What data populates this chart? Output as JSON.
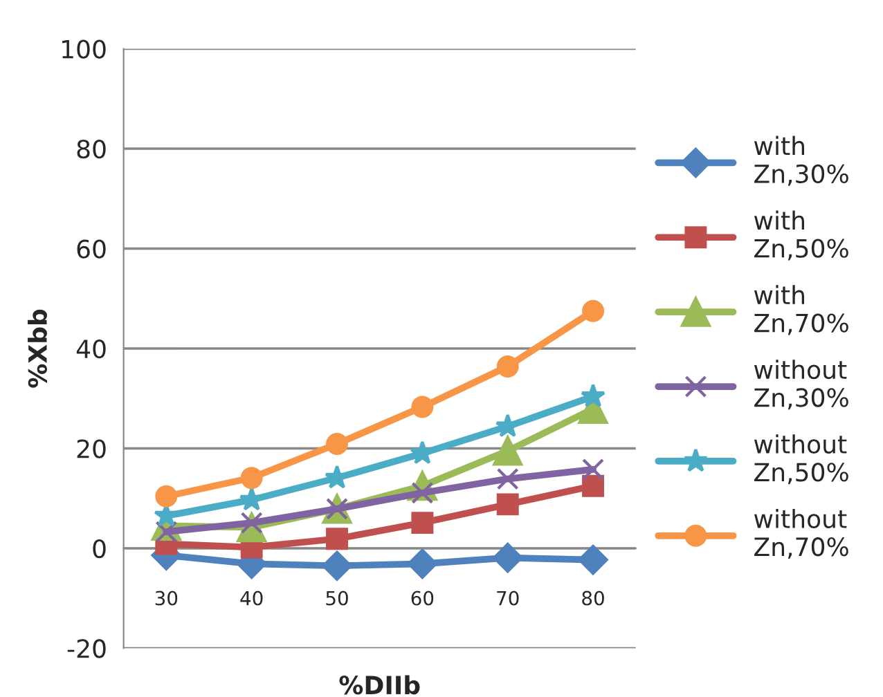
{
  "chart_data": {
    "type": "line",
    "xlabel": "%DIIb",
    "ylabel": "%Xbb",
    "categories": [
      "30",
      "40",
      "50",
      "60",
      "70",
      "80"
    ],
    "series": [
      {
        "name": "with Zn,30%",
        "color": "#4f81bd",
        "marker": "diamond",
        "values": [
          -1.4,
          -3.1,
          -3.5,
          -3.1,
          -1.9,
          -2.3
        ]
      },
      {
        "name": "with Zn,50%",
        "color": "#c0504d",
        "marker": "square",
        "values": [
          0.9,
          0.2,
          1.9,
          5.1,
          8.8,
          12.5
        ]
      },
      {
        "name": "with Zn,70%",
        "color": "#9bbb59",
        "marker": "triangle",
        "values": [
          4.5,
          4.2,
          7.9,
          12.5,
          19.5,
          27.9
        ]
      },
      {
        "name": "without Zn,30%",
        "color": "#8064a2",
        "marker": "cross",
        "values": [
          3.3,
          5.1,
          7.9,
          11.1,
          13.9,
          15.8
        ]
      },
      {
        "name": "without Zn,50%",
        "color": "#4bacc6",
        "marker": "star",
        "values": [
          6.5,
          9.7,
          14.1,
          19.0,
          24.4,
          30.4
        ]
      },
      {
        "name": "without Zn,70%",
        "color": "#f79646",
        "marker": "circle",
        "values": [
          10.4,
          14.1,
          20.9,
          28.3,
          36.4,
          47.5
        ]
      }
    ],
    "ylim": [
      -20,
      100
    ],
    "yticks": [
      -20,
      0,
      20,
      40,
      60,
      80,
      100
    ],
    "grid": "y",
    "legend": "right"
  }
}
